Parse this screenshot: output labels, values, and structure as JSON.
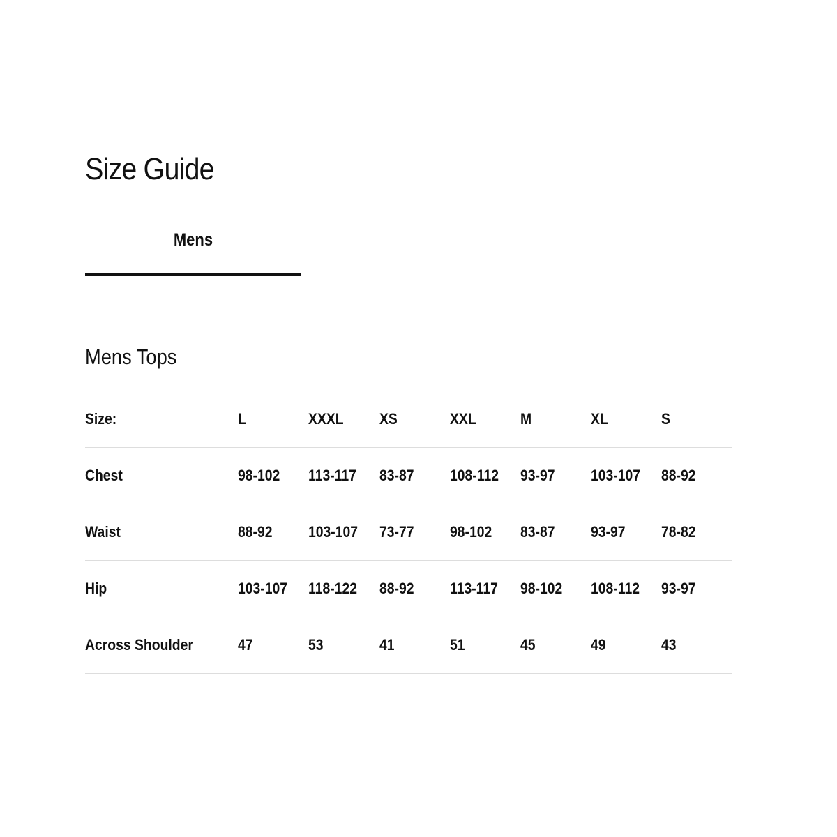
{
  "title": "Size Guide",
  "tabs": [
    {
      "label": "Mens",
      "active": true
    }
  ],
  "section_title": "Mens Tops",
  "table": {
    "header_label": "Size:",
    "sizes": [
      "L",
      "XXXL",
      "XS",
      "XXL",
      "M",
      "XL",
      "S"
    ],
    "rows": [
      {
        "label": "Chest",
        "values": [
          "98-102",
          "113-117",
          "83-87",
          "108-112",
          "93-97",
          "103-107",
          "88-92"
        ]
      },
      {
        "label": "Waist",
        "values": [
          "88-92",
          "103-107",
          "73-77",
          "98-102",
          "83-87",
          "93-97",
          "78-82"
        ]
      },
      {
        "label": "Hip",
        "values": [
          "103-107",
          "118-122",
          "88-92",
          "113-117",
          "98-102",
          "108-112",
          "93-97"
        ]
      },
      {
        "label": "Across Shoulder",
        "values": [
          "47",
          "53",
          "41",
          "51",
          "45",
          "49",
          "43"
        ]
      }
    ]
  }
}
